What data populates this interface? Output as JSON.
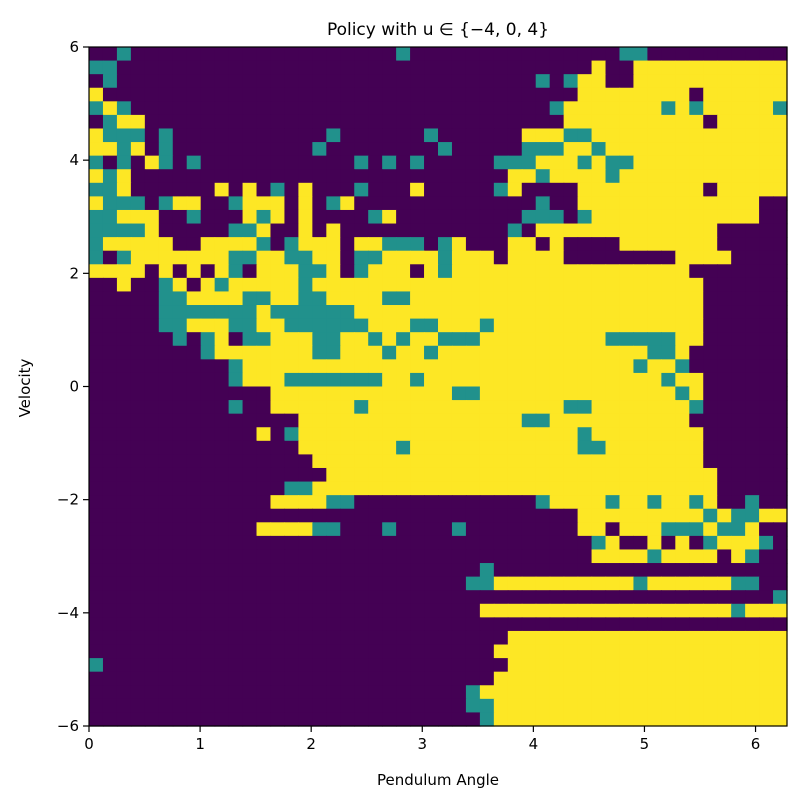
{
  "chart_data": {
    "type": "heatmap",
    "title": "Policy with  u ∈ {−4, 0, 4}",
    "xlabel": "Pendulum Angle",
    "ylabel": "Velocity",
    "xlim": [
      0,
      6.2832
    ],
    "ylim": [
      -6,
      6
    ],
    "xticks": [
      "0",
      "1",
      "2",
      "3",
      "4",
      "5",
      "6"
    ],
    "yticks": [
      "−6",
      "−4",
      "−2",
      "0",
      "2",
      "4",
      "6"
    ],
    "grid": false,
    "grid_size": [
      50,
      50
    ],
    "value_levels": [
      -4,
      0,
      4
    ],
    "colors": {
      "-4": "#440154",
      "0": "#21918c",
      "4": "#fde725"
    },
    "rows_top_to_bottom": [
      "AL0LLLLLLLLLLLLLLLLLLL0LLLLLLLLLLLLLLL00LLLLLLLLLL",
      "00LLLLLLLLLLLLLLLLLLLLLLLLLLLLLLLLLLHLLHHHHHHHHHHH",
      "L0LLLLLLLLLLLLLLLLLLLLLLLLLLLLLL0L0HHLLHHHHHHHHHHH",
      "HLLLLLLLLLLLLLLLLLLLLLLLLLLLLLLLLLLHHHHHHHHLHHHHHH",
      "0H0LLLLLLLLLLLLLLLLLLLLLLLLLLLLLL0HHHHHHH0H0HHHHH0",
      "L0HHLLLLLLLLLLLLLLLLLLLLLLLLLLLLLLHHHHHHHHHHLHHHHH",
      "H000L0LLLLLLLLLLL0LLLLLL0LLLLLLHHH00HHHHHHHHHHHHHH",
      "HH0HL0LLLLLLLLLL0LLLLLLLL0LLLLL000HH0HHHHHHHHHHHHH",
      "0L0LH0L0LLLLLLLLLLL0L0L0LLLLL000HHH0H00HHHHHHHHHHH",
      "H0HLLLLLLLLLLLLLLLLLLLLLLLLLLLHH0HHHH0HHHHHHHHHHHH",
      "00HLLLLLLHLHL0LHLLL0LLLHLLLLL0HLLLLHHHHHHHHHLHHHHH",
      "H000L0HHLL0HHHLHL0HLLLLLLLLLLLLL0LLHHHHHHHHHHHHHLL",
      "00HHHLL0LLLH0HLHLLLL0HLLLLLLLLL000L0HHHHHHHHHHHHLL",
      "0000HLLLLL00HLLHLHLLLLLLLLLLLL0LHHHHHHHHHHHHHLLLLL",
      "0HHHHHLLHHHH0L0HHHLHH000L0HLLLHHLHLLLLHHHHHHHLLLLL",
      "0L0HHHHHHH00HH00HHL00HHHH0HHHLHHHHLLLLLLLLHHHHLLLL",
      "HHHHLHLHLH0LHHH00HL0HHHLH0HHHHHHHHHHHHHHHHHLLLLLLL",
      "LLHLL0HLH0HHHHH0HHHHHHHHHHHHHHHHHHHHHHHHHHHHLLLLLL",
      "LLLLL00HHHH00HH00HHHH00HHHHHHHHHHHHHHHHHHHHHLLLLLL",
      "LLLLL0000000H000000HHHHHHHHHHHHHHHHHHHHHHHHHLLLLLL",
      "LLLLL00HHH00HH000000HHH00HHH0HHHHHHHHHHHHHHHLLLLLL",
      "LLLLLL0L0HL00HHH00HH0H0HH000HHHHHHHHH00000HHLLLLLL",
      "LLLLLLLL0HHHHHHH00HHH0HH0HHHHHHHHHHHHHHH00HLLLLLLL",
      "LLLLLLLLLL0HHHHHHHHHHHHHHHHHHHHHHHHHHHH0HH0LLLLLLL",
      "LLLLLLLLLL0HHH0000000HH0HHHHHHHHHHHHHHHHH0HHLLLLLL",
      "LLLLLLLLLLLLLHHHHHHHHHHHHH00HHHHHHHHHHHHHH0HLLLLLL",
      "LLLLLLLLLL0LLHHHHHH0HHHHHHHHHHHHHH00HHHHHHH0LLLLLL",
      "LLLLLLLLLLLLLLLHHHHHHHHHHHHHHHH00HHHHHHHHHHLLLLLLL",
      "LLLLLLLLLLLLHL0HHHHHHHHHHHHHHHHHHHH0HHHHHHHHLLLLLL",
      "LLLLLLLLLLLLLLLHHHHHHH0HHHHHHHHHHHH00HHHHHHHLLLLLL",
      "LLLLLLLLLLLLLLLLHHHHHHHHHHHHHHHHHHHHHHHHHHHHLLLLLL",
      "LLLLLLLLLLLLLLLLLHHHHHHHHHHHHHHHHHHHHHHHHHHHHLLLLL",
      "LLLLLLLLLLLLLL00HHHHHHHHHHHHHHHHHHHHHHHHHHHHHLLLLL",
      "LLLLLLLLLLLLLHHHH00LLLLLLLLLLLLL0HHHH0HH0HH0HLL0LL",
      "LLLLLLLLLLLLLLLLLLLLLLLLLLLLLLLLLLLHHHHHHHHH0H00HH",
      "LLLLLLLLLLLLHHHH00LLL0LLLL0LLLLLLLLHHLHHH000H00HLL",
      "LLLLLLLLLLLLLLLLLLLLLLLLLLLLLLLLLLLL0HLLHLHL0HHH0L",
      "LLLLLLLLLLLLLLLLLLLLLLLLLLLLLLLLLLLLHHHH0HHHHLH0LL",
      "LLLLLLLLLLLLLLLLLLLLLLLLLLLL0LLLLLLLLLLLLLLLLLLLLL",
      "LLLLLLLLLLLLLLLLLLLLLLLLLLL00HHHHHHHHHH0HHHHHH00LL",
      "LLLLLLLLLLLLLLLLLLLLLLLLLLLLLLLLLLLLLLLLLLLLLLLLL0",
      "LLLLLLLLLLLLLLLLLLLLLLLLLLLLHHHHHHHHHHHHHHHHHH0HHH",
      "LLLLLLLLLLLLLLLLLLLLLLLLLLLLLLLLLLLLLLLLLLLLLLLLLL",
      "LLLLLLLLLLLLLLLLLLLLLLLLLLLLLLHHHHHHHHHHHHHHHHHHHH",
      "LLLLLLLLLLLLLLLLLLLLLLLLLLLLLHHHHHHHHHHHHHHHHHHHHH",
      "0LLLLLLLLLLLLLLLLLLLLLLLLLLLLLHHHHHHHHHHHHHHHHHHHH",
      "LLLLLLLLLLLLLLLLLLLLLLLLLLLLLHHHHHHHHHHHHHHHHHHHHH",
      "LLLLLLLLLLLLLLLLLLLLLLLLLLL0HHHHHHHHHHHHHHHHHHHHHH",
      "LLLLLLLLLLLLLLLLLLLLLLLLLLL00HHHHHHHHHHHHHHHHHHHHH",
      "LLLLLLLLLLLLLLLLLLLLLLLLLLLL0HHHHHHHHHHHHHHHHHHHHH"
    ]
  }
}
